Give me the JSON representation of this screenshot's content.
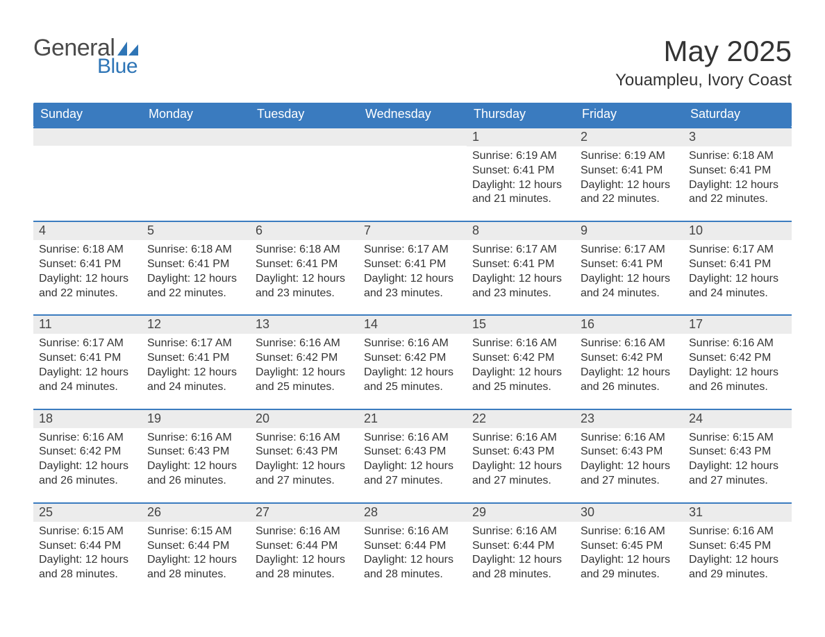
{
  "colors": {
    "header_bg": "#3a7bbf",
    "day_bar_bg": "#ececec",
    "day_bar_border": "#3a7bbf",
    "text": "#333333",
    "logo_blue": "#2e75b6",
    "logo_gray": "#4a4a4a",
    "background": "#ffffff"
  },
  "logo": {
    "text1": "General",
    "text2": "Blue"
  },
  "title": {
    "month": "May 2025",
    "location": "Youampleu, Ivory Coast"
  },
  "weekdays": [
    "Sunday",
    "Monday",
    "Tuesday",
    "Wednesday",
    "Thursday",
    "Friday",
    "Saturday"
  ],
  "weeks": [
    [
      {
        "empty": true
      },
      {
        "empty": true
      },
      {
        "empty": true
      },
      {
        "empty": true
      },
      {
        "num": "1",
        "sunrise": "Sunrise: 6:19 AM",
        "sunset": "Sunset: 6:41 PM",
        "daylight1": "Daylight: 12 hours",
        "daylight2": "and 21 minutes."
      },
      {
        "num": "2",
        "sunrise": "Sunrise: 6:19 AM",
        "sunset": "Sunset: 6:41 PM",
        "daylight1": "Daylight: 12 hours",
        "daylight2": "and 22 minutes."
      },
      {
        "num": "3",
        "sunrise": "Sunrise: 6:18 AM",
        "sunset": "Sunset: 6:41 PM",
        "daylight1": "Daylight: 12 hours",
        "daylight2": "and 22 minutes."
      }
    ],
    [
      {
        "num": "4",
        "sunrise": "Sunrise: 6:18 AM",
        "sunset": "Sunset: 6:41 PM",
        "daylight1": "Daylight: 12 hours",
        "daylight2": "and 22 minutes."
      },
      {
        "num": "5",
        "sunrise": "Sunrise: 6:18 AM",
        "sunset": "Sunset: 6:41 PM",
        "daylight1": "Daylight: 12 hours",
        "daylight2": "and 22 minutes."
      },
      {
        "num": "6",
        "sunrise": "Sunrise: 6:18 AM",
        "sunset": "Sunset: 6:41 PM",
        "daylight1": "Daylight: 12 hours",
        "daylight2": "and 23 minutes."
      },
      {
        "num": "7",
        "sunrise": "Sunrise: 6:17 AM",
        "sunset": "Sunset: 6:41 PM",
        "daylight1": "Daylight: 12 hours",
        "daylight2": "and 23 minutes."
      },
      {
        "num": "8",
        "sunrise": "Sunrise: 6:17 AM",
        "sunset": "Sunset: 6:41 PM",
        "daylight1": "Daylight: 12 hours",
        "daylight2": "and 23 minutes."
      },
      {
        "num": "9",
        "sunrise": "Sunrise: 6:17 AM",
        "sunset": "Sunset: 6:41 PM",
        "daylight1": "Daylight: 12 hours",
        "daylight2": "and 24 minutes."
      },
      {
        "num": "10",
        "sunrise": "Sunrise: 6:17 AM",
        "sunset": "Sunset: 6:41 PM",
        "daylight1": "Daylight: 12 hours",
        "daylight2": "and 24 minutes."
      }
    ],
    [
      {
        "num": "11",
        "sunrise": "Sunrise: 6:17 AM",
        "sunset": "Sunset: 6:41 PM",
        "daylight1": "Daylight: 12 hours",
        "daylight2": "and 24 minutes."
      },
      {
        "num": "12",
        "sunrise": "Sunrise: 6:17 AM",
        "sunset": "Sunset: 6:41 PM",
        "daylight1": "Daylight: 12 hours",
        "daylight2": "and 24 minutes."
      },
      {
        "num": "13",
        "sunrise": "Sunrise: 6:16 AM",
        "sunset": "Sunset: 6:42 PM",
        "daylight1": "Daylight: 12 hours",
        "daylight2": "and 25 minutes."
      },
      {
        "num": "14",
        "sunrise": "Sunrise: 6:16 AM",
        "sunset": "Sunset: 6:42 PM",
        "daylight1": "Daylight: 12 hours",
        "daylight2": "and 25 minutes."
      },
      {
        "num": "15",
        "sunrise": "Sunrise: 6:16 AM",
        "sunset": "Sunset: 6:42 PM",
        "daylight1": "Daylight: 12 hours",
        "daylight2": "and 25 minutes."
      },
      {
        "num": "16",
        "sunrise": "Sunrise: 6:16 AM",
        "sunset": "Sunset: 6:42 PM",
        "daylight1": "Daylight: 12 hours",
        "daylight2": "and 26 minutes."
      },
      {
        "num": "17",
        "sunrise": "Sunrise: 6:16 AM",
        "sunset": "Sunset: 6:42 PM",
        "daylight1": "Daylight: 12 hours",
        "daylight2": "and 26 minutes."
      }
    ],
    [
      {
        "num": "18",
        "sunrise": "Sunrise: 6:16 AM",
        "sunset": "Sunset: 6:42 PM",
        "daylight1": "Daylight: 12 hours",
        "daylight2": "and 26 minutes."
      },
      {
        "num": "19",
        "sunrise": "Sunrise: 6:16 AM",
        "sunset": "Sunset: 6:43 PM",
        "daylight1": "Daylight: 12 hours",
        "daylight2": "and 26 minutes."
      },
      {
        "num": "20",
        "sunrise": "Sunrise: 6:16 AM",
        "sunset": "Sunset: 6:43 PM",
        "daylight1": "Daylight: 12 hours",
        "daylight2": "and 27 minutes."
      },
      {
        "num": "21",
        "sunrise": "Sunrise: 6:16 AM",
        "sunset": "Sunset: 6:43 PM",
        "daylight1": "Daylight: 12 hours",
        "daylight2": "and 27 minutes."
      },
      {
        "num": "22",
        "sunrise": "Sunrise: 6:16 AM",
        "sunset": "Sunset: 6:43 PM",
        "daylight1": "Daylight: 12 hours",
        "daylight2": "and 27 minutes."
      },
      {
        "num": "23",
        "sunrise": "Sunrise: 6:16 AM",
        "sunset": "Sunset: 6:43 PM",
        "daylight1": "Daylight: 12 hours",
        "daylight2": "and 27 minutes."
      },
      {
        "num": "24",
        "sunrise": "Sunrise: 6:15 AM",
        "sunset": "Sunset: 6:43 PM",
        "daylight1": "Daylight: 12 hours",
        "daylight2": "and 27 minutes."
      }
    ],
    [
      {
        "num": "25",
        "sunrise": "Sunrise: 6:15 AM",
        "sunset": "Sunset: 6:44 PM",
        "daylight1": "Daylight: 12 hours",
        "daylight2": "and 28 minutes."
      },
      {
        "num": "26",
        "sunrise": "Sunrise: 6:15 AM",
        "sunset": "Sunset: 6:44 PM",
        "daylight1": "Daylight: 12 hours",
        "daylight2": "and 28 minutes."
      },
      {
        "num": "27",
        "sunrise": "Sunrise: 6:16 AM",
        "sunset": "Sunset: 6:44 PM",
        "daylight1": "Daylight: 12 hours",
        "daylight2": "and 28 minutes."
      },
      {
        "num": "28",
        "sunrise": "Sunrise: 6:16 AM",
        "sunset": "Sunset: 6:44 PM",
        "daylight1": "Daylight: 12 hours",
        "daylight2": "and 28 minutes."
      },
      {
        "num": "29",
        "sunrise": "Sunrise: 6:16 AM",
        "sunset": "Sunset: 6:44 PM",
        "daylight1": "Daylight: 12 hours",
        "daylight2": "and 28 minutes."
      },
      {
        "num": "30",
        "sunrise": "Sunrise: 6:16 AM",
        "sunset": "Sunset: 6:45 PM",
        "daylight1": "Daylight: 12 hours",
        "daylight2": "and 29 minutes."
      },
      {
        "num": "31",
        "sunrise": "Sunrise: 6:16 AM",
        "sunset": "Sunset: 6:45 PM",
        "daylight1": "Daylight: 12 hours",
        "daylight2": "and 29 minutes."
      }
    ]
  ]
}
